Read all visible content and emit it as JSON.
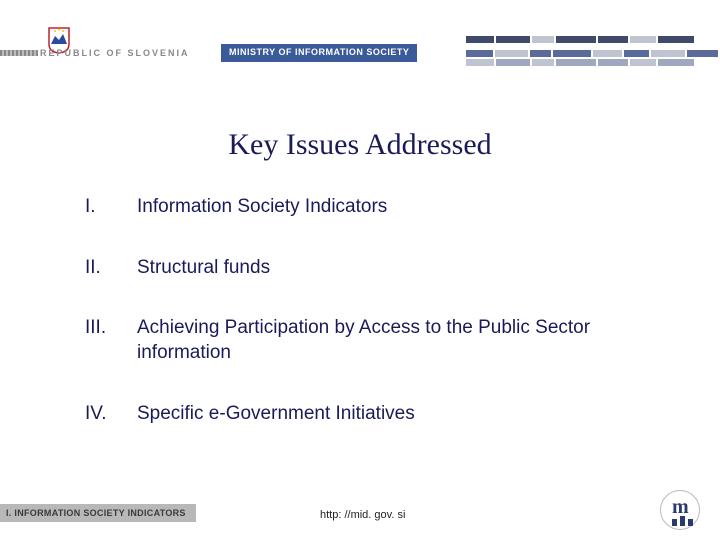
{
  "header": {
    "republic_text": "REPUBLIC OF SLOVENIA",
    "ministry_text": "MINISTRY OF INFORMATION SOCIETY",
    "accent_color": "#3a5a9a",
    "republic_text_color": "#888888"
  },
  "title": {
    "text": "Key Issues Addressed",
    "color": "#1a1a5a",
    "fontsize": 30
  },
  "list": {
    "text_color": "#1a1a5a",
    "fontsize": 19,
    "items": [
      {
        "num": "I.",
        "text": "Information Society Indicators"
      },
      {
        "num": "II.",
        "text": "Structural funds"
      },
      {
        "num": "III.",
        "text": "Achieving Participation by Access to the Public Sector information"
      },
      {
        "num": "IV.",
        "text": "Specific e-Government Initiatives"
      }
    ]
  },
  "footer": {
    "section_label": "I. INFORMATION SOCIETY INDICATORS",
    "url": "http: //mid. gov. si",
    "section_bg": "#b8b8b8",
    "section_fg": "#3a3a3a"
  },
  "coat_of_arms": {
    "mountain_color": "#2a4aa0",
    "bg_color": "#ffffff",
    "border_color": "#c02030",
    "star_color": "#f0c800"
  },
  "deco_colors": {
    "row1": [
      "#404a6a",
      "#404a6a",
      "#c0c4d0",
      "#404a6a",
      "#404a6a",
      "#c0c4d0",
      "#404a6a"
    ],
    "row2": [
      "#5a6a9a",
      "#c0c4d0",
      "#5a6a9a",
      "#5a6a9a",
      "#c0c4d0",
      "#5a6a9a",
      "#c0c4d0",
      "#5a6a9a"
    ],
    "row3": [
      "#c0c4d0",
      "#a0a8c0",
      "#c0c4d0",
      "#a0a8c0",
      "#a0a8c0",
      "#c0c4d0",
      "#a0a8c0"
    ]
  }
}
